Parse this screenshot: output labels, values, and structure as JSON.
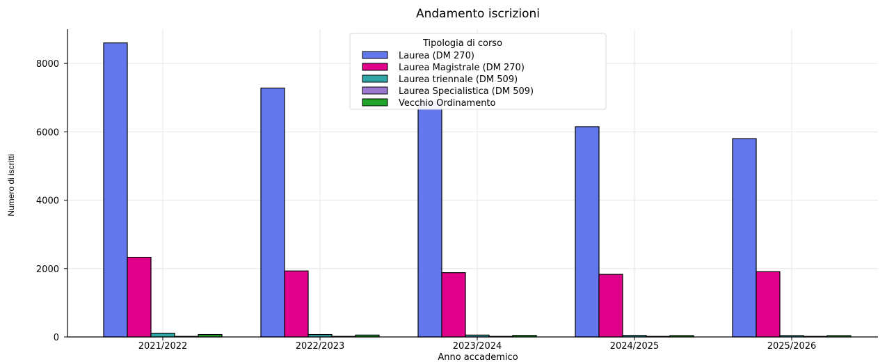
{
  "chart_data": {
    "type": "bar",
    "title": "Andamento iscrizioni",
    "xlabel": "Anno accademico",
    "ylabel": "Numero di iscritti",
    "categories": [
      "2021/2022",
      "2022/2023",
      "2023/2024",
      "2024/2025",
      "2025/2026"
    ],
    "yticks": [
      0,
      2000,
      4000,
      6000,
      8000
    ],
    "ylim": [
      0,
      9000
    ],
    "grid": true,
    "legend": {
      "title": "Tipologia di corso",
      "placement": "top-center"
    },
    "series": [
      {
        "name": "Laurea (DM 270)",
        "color": "#6478ee",
        "values": [
          8600,
          7280,
          6900,
          6150,
          5800
        ]
      },
      {
        "name": "Laurea Magistrale (DM 270)",
        "color": "#e0008a",
        "values": [
          2330,
          1930,
          1880,
          1830,
          1910
        ]
      },
      {
        "name": "Laurea triennale (DM 509)",
        "color": "#30a6a6",
        "values": [
          110,
          70,
          55,
          45,
          40
        ]
      },
      {
        "name": "Laurea Specialistica (DM 509)",
        "color": "#9d78d0",
        "values": [
          10,
          8,
          6,
          5,
          4
        ]
      },
      {
        "name": "Vecchio Ordinamento",
        "color": "#21a32a",
        "values": [
          70,
          55,
          45,
          40,
          38
        ]
      }
    ]
  }
}
